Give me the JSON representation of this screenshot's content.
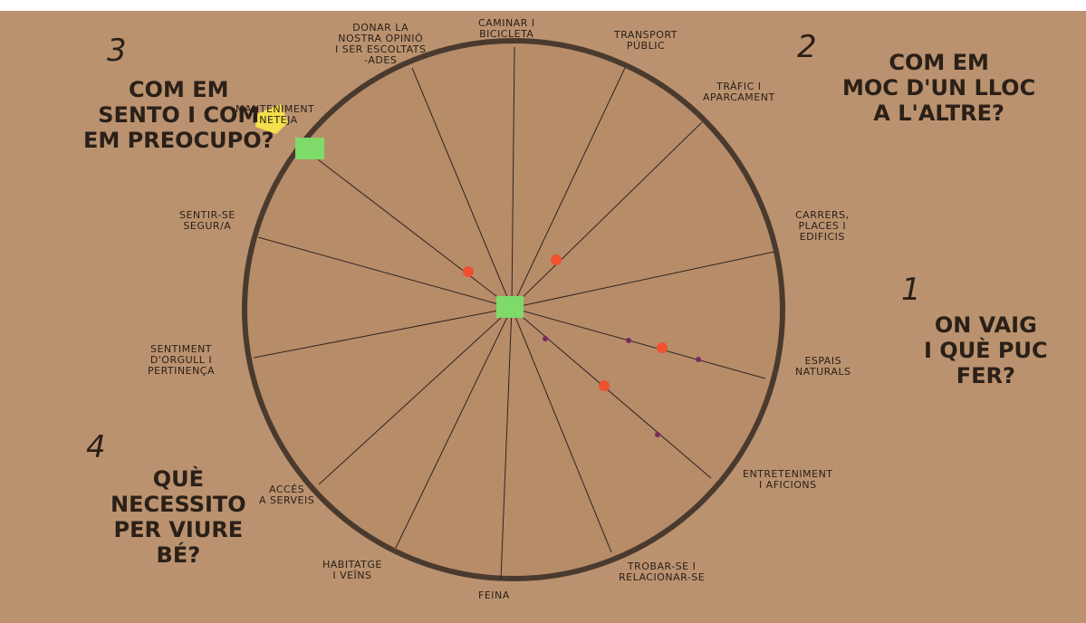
{
  "sections": [
    {
      "number": "1",
      "lines": [
        "ON VAIG",
        "I QUÈ PUC",
        "FER?"
      ]
    },
    {
      "number": "2",
      "lines": [
        "COM EM",
        "MOC D'UN LLOC",
        "A L'ALTRE?"
      ]
    },
    {
      "number": "3",
      "lines": [
        "COM EM",
        "SENTO I COM",
        "EM PREOCUPO?"
      ]
    },
    {
      "number": "4",
      "lines": [
        "QUÈ",
        "NECESSITO",
        "PER VIURE",
        "BÉ?"
      ]
    }
  ],
  "spokes": [
    {
      "lines": [
        "CAMINAR I",
        "BICICLETA"
      ]
    },
    {
      "lines": [
        "TRANSPORT",
        "PÚBLIC"
      ]
    },
    {
      "lines": [
        "TRÀFIC I",
        "APARCAMENT"
      ]
    },
    {
      "lines": [
        "CARRERS,",
        "PLACES I",
        "EDIFICIS"
      ]
    },
    {
      "lines": [
        "ESPAIS",
        "NATURALS"
      ]
    },
    {
      "lines": [
        "ENTRETENIMENT",
        "I AFICIONS"
      ]
    },
    {
      "lines": [
        "TROBAR-SE I",
        "RELACIONAR-SE"
      ]
    },
    {
      "lines": [
        "FEINA"
      ]
    },
    {
      "lines": [
        "HABITATGE",
        "I VEÏNS"
      ]
    },
    {
      "lines": [
        "ACCÉS",
        "A SERVEIS"
      ]
    },
    {
      "lines": [
        "SENTIMENT",
        "D'ORGULL I",
        "PERTINENÇA"
      ]
    },
    {
      "lines": [
        "SENTIR-SE",
        "SEGUR/A"
      ]
    },
    {
      "lines": [
        "MANTENIMENT",
        "I NETEJA"
      ]
    },
    {
      "lines": [
        "DONAR LA",
        "NOSTRA OPINIÓ",
        "I SER ESCOLTATS",
        "-ADES"
      ]
    }
  ]
}
